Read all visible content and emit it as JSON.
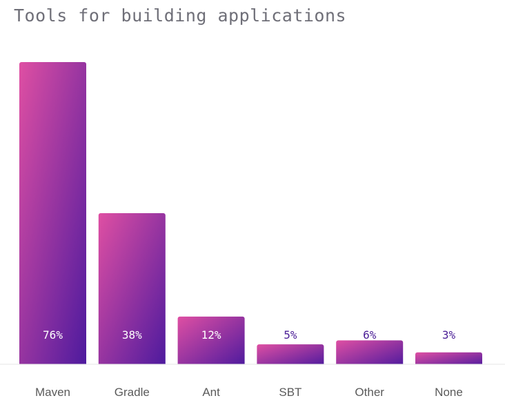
{
  "chart_data": {
    "type": "bar",
    "title": "Tools for building applications",
    "categories": [
      "Maven",
      "Gradle",
      "Ant",
      "SBT",
      "Other",
      "None"
    ],
    "values": [
      76,
      38,
      12,
      5,
      6,
      3
    ],
    "value_labels": [
      "76%",
      "38%",
      "12%",
      "5%",
      "6%",
      "3%"
    ],
    "ylim": [
      0,
      76
    ],
    "grid": false,
    "legend": "none",
    "colors": {
      "bar_gradient_top": "#df4fa3",
      "bar_gradient_bottom": "#4d1a9e",
      "label_inside": "#ffffff",
      "label_outside": "#4a1d96",
      "baseline": "#e4e4e4"
    }
  }
}
